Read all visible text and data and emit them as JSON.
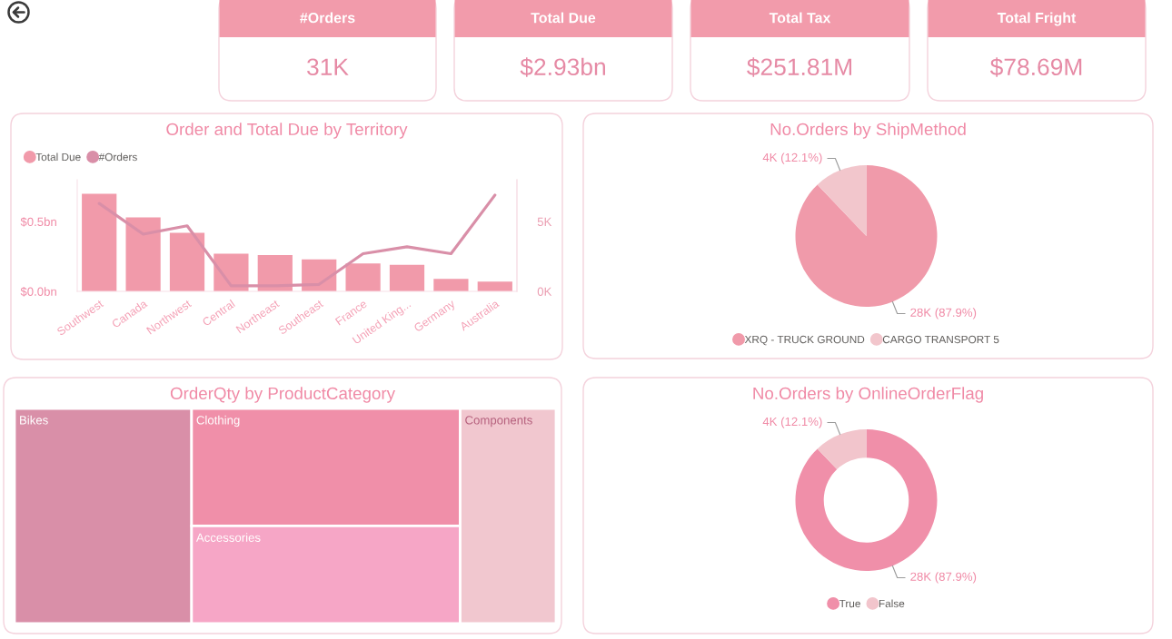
{
  "chart_data": [
    {
      "type": "other",
      "title": "#Orders",
      "annotations": [
        "31K"
      ]
    },
    {
      "type": "other",
      "title": "Total Due",
      "annotations": [
        "$2.93bn"
      ]
    },
    {
      "type": "other",
      "title": "Total Tax",
      "annotations": [
        "$251.81M"
      ]
    },
    {
      "type": "other",
      "title": "Total Fright",
      "annotations": [
        "$78.69M"
      ]
    },
    {
      "type": "bar",
      "title": "Order and Total Due by Territory",
      "categories": [
        "Southwest",
        "Canada",
        "Northwest",
        "Central",
        "Northeast",
        "Southeast",
        "France",
        "United King...",
        "Germany",
        "Australia"
      ],
      "series": [
        {
          "name": "Total Due",
          "type": "bar",
          "color": "#f19aaa",
          "values": [
            0.7,
            0.53,
            0.42,
            0.27,
            0.26,
            0.23,
            0.2,
            0.19,
            0.09,
            0.07
          ]
        },
        {
          "name": "#Orders",
          "type": "line",
          "axis": "y2",
          "color": "#d98fa8",
          "values": [
            6.3,
            4.1,
            4.7,
            0.4,
            0.4,
            0.5,
            2.7,
            3.2,
            2.7,
            6.9
          ]
        }
      ],
      "ylim": [
        0,
        0.8
      ],
      "yticks": [
        {
          "value": 0,
          "label": "$0.0bn"
        },
        {
          "value": 0.5,
          "label": "$0.5bn"
        }
      ],
      "y2lim": [
        0,
        8
      ],
      "y2ticks": [
        {
          "value": 0,
          "label": "0K"
        },
        {
          "value": 5,
          "label": "5K"
        }
      ],
      "legend": "top left"
    },
    {
      "type": "pie",
      "title": "No.Orders by ShipMethod",
      "categories": [
        "XRQ - TRUCK GROUND",
        "CARGO TRANSPORT 5"
      ],
      "values": [
        87.9,
        12.1
      ],
      "value_labels": [
        "28K (87.9%)",
        "4K (12.1%)"
      ],
      "colors": [
        "#f09aaa",
        "#f2c6cc"
      ],
      "legend": "bottom"
    },
    {
      "type": "other",
      "title": "OrderQty by ProductCategory",
      "categories": [
        "Bikes",
        "Clothing",
        "Accessories",
        "Components"
      ],
      "colors": [
        "#d98fa8",
        "#f08fa9",
        "#f6a6c6",
        "#f1c7cf"
      ]
    },
    {
      "type": "donut",
      "title": "No.Orders by OnlineOrderFlag",
      "categories": [
        "True",
        "False"
      ],
      "values": [
        87.9,
        12.1
      ],
      "value_labels": [
        "28K (87.9%)",
        "4K (12.1%)"
      ],
      "colors": [
        "#f08fa9",
        "#f2c5cc"
      ],
      "legend": "bottom"
    }
  ]
}
